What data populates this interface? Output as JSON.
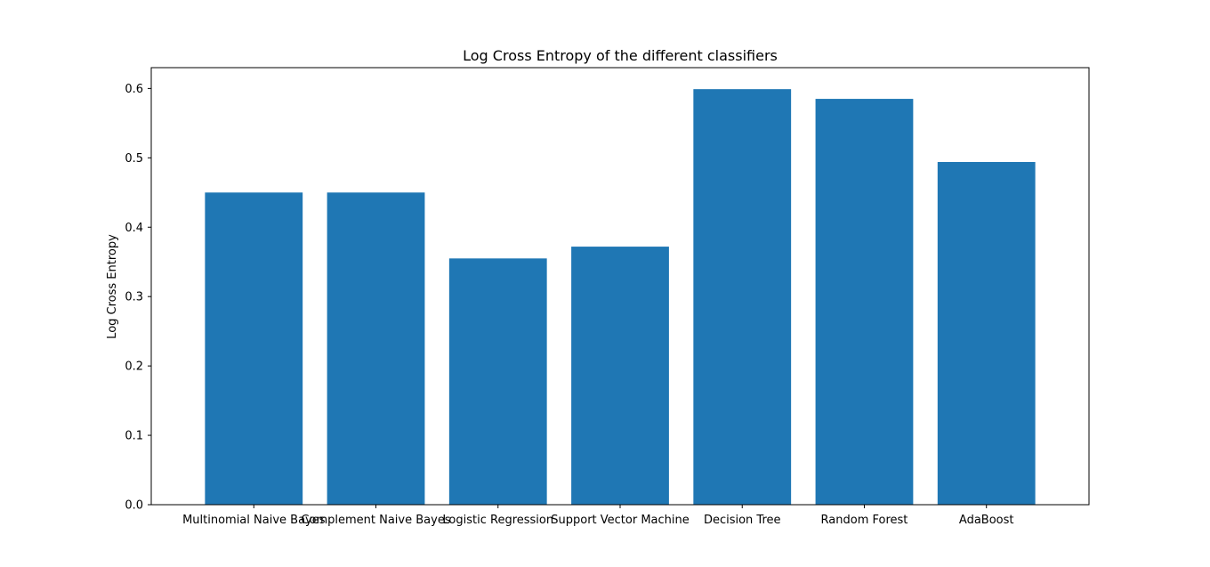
{
  "chart_data": {
    "type": "bar",
    "title": "Log Cross Entropy of the different classifiers",
    "xlabel": "",
    "ylabel": "Log Cross Entropy",
    "categories": [
      "Multinomial Naive Bayes",
      "Complement Naive Bayes",
      "Logistic Regression",
      "Support Vector Machine",
      "Decision Tree",
      "Random Forest",
      "AdaBoost"
    ],
    "values": [
      0.45,
      0.45,
      0.355,
      0.372,
      0.599,
      0.585,
      0.494
    ],
    "ylim": [
      0,
      0.63
    ],
    "yticks": [
      "0.0",
      "0.1",
      "0.2",
      "0.3",
      "0.4",
      "0.5",
      "0.6"
    ],
    "bar_color": "#1f77b4",
    "grid": false,
    "legend": "none"
  }
}
